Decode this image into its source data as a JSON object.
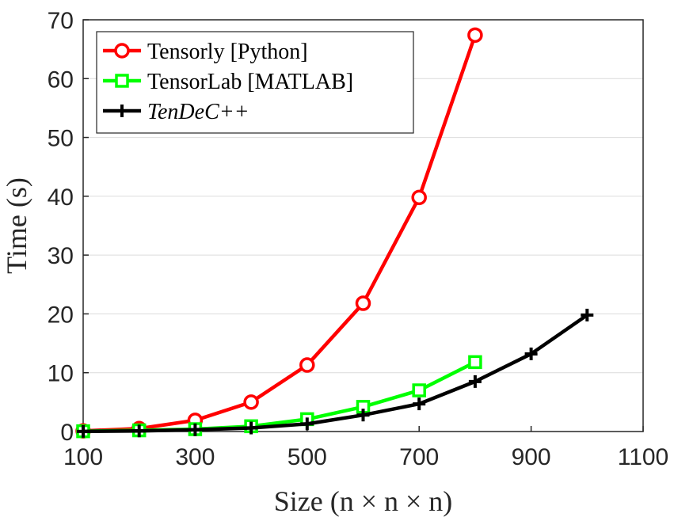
{
  "chart_data": {
    "type": "line",
    "xlabel": "Size (n × n × n)",
    "ylabel": "Time (s)",
    "xlim": [
      100,
      1100
    ],
    "ylim": [
      0,
      70
    ],
    "xticks": [
      100,
      300,
      500,
      700,
      900,
      1100
    ],
    "yticks": [
      0,
      10,
      20,
      30,
      40,
      50,
      60,
      70
    ],
    "grid": "horizontal",
    "legend_position": "top-left",
    "series": [
      {
        "name": "Tensorly [Python]",
        "color": "#ff0000",
        "marker": "circle",
        "x": [
          100,
          200,
          300,
          400,
          500,
          600,
          700,
          800
        ],
        "y": [
          0.1,
          0.5,
          1.9,
          5.0,
          11.3,
          21.8,
          39.8,
          67.4
        ]
      },
      {
        "name": "TensorLab [MATLAB]",
        "color": "#00ff00",
        "marker": "square",
        "x": [
          100,
          200,
          300,
          400,
          500,
          600,
          700,
          800
        ],
        "y": [
          0.05,
          0.2,
          0.4,
          0.9,
          2.1,
          4.2,
          7.0,
          11.8
        ]
      },
      {
        "name": "TenDeC++",
        "name_style": "italic",
        "color": "#000000",
        "marker": "plus",
        "x": [
          100,
          200,
          300,
          400,
          500,
          600,
          700,
          800,
          900,
          1000
        ],
        "y": [
          0.02,
          0.1,
          0.3,
          0.6,
          1.3,
          2.8,
          4.7,
          8.5,
          13.2,
          19.8
        ]
      }
    ]
  }
}
